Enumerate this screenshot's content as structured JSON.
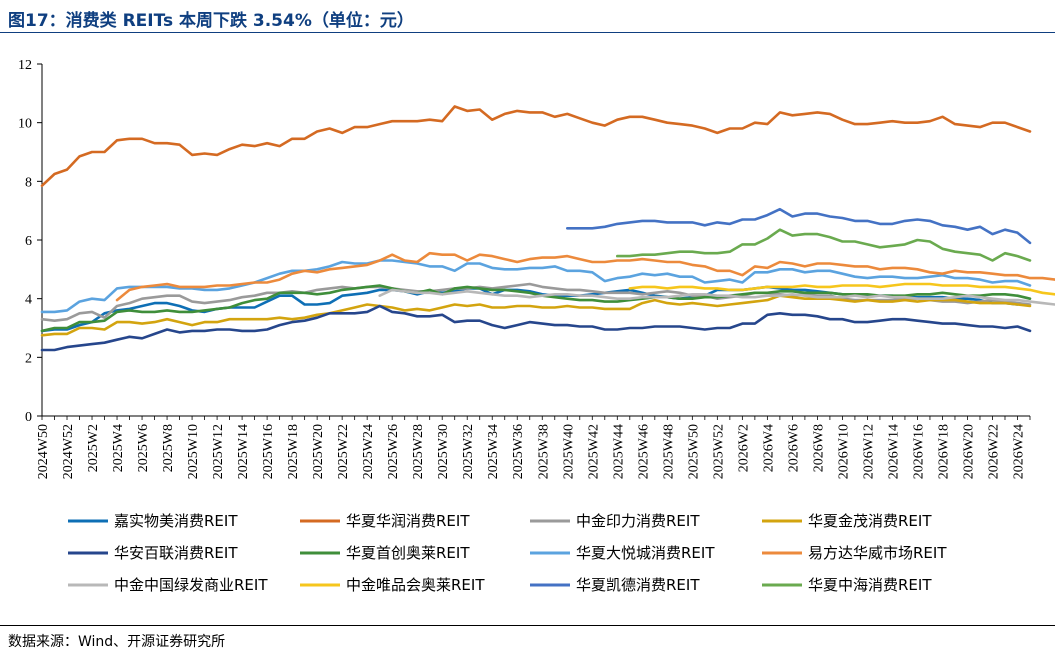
{
  "header": {
    "title": "图17：消费类 REITs 本周下跌 3.54%（单位：元）"
  },
  "footer": {
    "source": "数据来源：Wind、开源证券研究所"
  },
  "chart_data": {
    "type": "line",
    "title": "",
    "xlabel": "",
    "ylabel": "",
    "ylim": [
      0,
      12
    ],
    "yticks": [
      0,
      2,
      4,
      6,
      8,
      10,
      12
    ],
    "grid": false,
    "legend_position": "bottom",
    "xtick_labels": [
      "2024W50",
      "2024W52",
      "2025W2",
      "2025W4",
      "2025W6",
      "2025W8",
      "2025W10",
      "2025W12",
      "2025W14",
      "2025W16",
      "2025W18",
      "2025W20",
      "2025W22",
      "2025W24",
      "2025W26",
      "2025W28",
      "2025W30",
      "2025W32",
      "2025W34",
      "2025W36",
      "2025W38",
      "2025W40",
      "2025W42",
      "2025W44",
      "2025W46",
      "2025W48",
      "2025W50",
      "2025W52",
      "2026W2",
      "2026W4",
      "2026W6",
      "2026W8",
      "2026W10",
      "2026W12",
      "2026W14",
      "2026W16",
      "2026W18",
      "2026W20",
      "2026W22",
      "2026W24"
    ],
    "x_start": "2024W50",
    "x_end": "2026W25",
    "series": [
      {
        "name": "嘉实物美消费REIT",
        "color": "#0e6fb5",
        "start_week": "2024W50",
        "values": [
          2.9,
          2.95,
          2.95,
          3.1,
          3.2,
          3.5,
          3.6,
          3.65,
          3.75,
          3.85,
          3.85,
          3.75,
          3.6,
          3.55,
          3.65,
          3.7,
          3.7,
          3.7,
          3.9,
          4.1,
          4.1,
          3.8,
          3.8,
          3.85,
          4.1,
          4.15,
          4.2,
          4.3,
          4.3,
          4.25,
          4.15,
          4.25,
          4.2,
          4.25,
          4.35,
          4.35,
          4.15,
          4.3,
          4.3,
          4.25,
          4.15,
          4.1,
          4.1,
          4.1,
          4.15,
          4.2,
          4.25,
          4.3,
          4.2,
          4.1,
          4.05,
          4.0,
          4.05,
          4.1,
          4.3,
          4.3,
          4.3,
          4.35,
          4.4,
          4.35,
          4.3,
          4.3,
          4.25,
          4.2,
          4.15,
          4.15,
          4.1,
          4.1,
          4.1,
          4.05,
          4.05,
          4.05,
          4.05,
          4.0,
          4.0,
          3.95,
          3.85,
          3.85,
          3.8
        ]
      },
      {
        "name": "华夏华润消费REIT",
        "color": "#d46a22",
        "start_week": "2024W50",
        "values": [
          7.85,
          8.25,
          8.4,
          8.85,
          9.0,
          9.0,
          9.4,
          9.45,
          9.45,
          9.3,
          9.3,
          9.25,
          8.9,
          8.95,
          8.9,
          9.1,
          9.25,
          9.2,
          9.3,
          9.2,
          9.45,
          9.45,
          9.7,
          9.8,
          9.65,
          9.85,
          9.85,
          9.95,
          10.05,
          10.05,
          10.05,
          10.1,
          10.05,
          10.55,
          10.4,
          10.45,
          10.1,
          10.3,
          10.4,
          10.35,
          10.35,
          10.2,
          10.3,
          10.15,
          10.0,
          9.9,
          10.1,
          10.2,
          10.2,
          10.1,
          10.0,
          9.95,
          9.9,
          9.8,
          9.65,
          9.8,
          9.8,
          10.0,
          9.95,
          10.35,
          10.25,
          10.3,
          10.35,
          10.3,
          10.1,
          9.95,
          9.95,
          10.0,
          10.05,
          10.0,
          10.0,
          10.05,
          10.2,
          9.95,
          9.9,
          9.85,
          10.0,
          10.0,
          9.85,
          9.7
        ]
      },
      {
        "name": "中金印力消费REIT",
        "color": "#9a9a9a",
        "start_week": "2024W50",
        "values": [
          3.3,
          3.25,
          3.3,
          3.5,
          3.55,
          3.35,
          3.75,
          3.85,
          4.0,
          4.05,
          4.1,
          4.1,
          3.9,
          3.85,
          3.9,
          3.95,
          4.05,
          4.1,
          4.2,
          4.2,
          4.25,
          4.2,
          4.3,
          4.35,
          4.4,
          4.35,
          4.4,
          4.4,
          4.35,
          4.3,
          4.25,
          4.25,
          4.3,
          4.35,
          4.35,
          4.4,
          4.35,
          4.4,
          4.45,
          4.5,
          4.4,
          4.35,
          4.3,
          4.3,
          4.25,
          4.2,
          4.2,
          4.2,
          4.15,
          4.2,
          4.25,
          4.2,
          4.1,
          4.1,
          4.0,
          4.05,
          4.1,
          4.2,
          4.2,
          4.15,
          4.1,
          4.15,
          4.1,
          4.1,
          4.0,
          3.95,
          3.95,
          3.95,
          3.95,
          4.0,
          4.0,
          3.95,
          3.9,
          3.9,
          3.85,
          3.9,
          3.95,
          3.9,
          3.85,
          3.8
        ]
      },
      {
        "name": "华夏金茂消费REIT",
        "color": "#d3a40f",
        "start_week": "2024W50",
        "values": [
          2.75,
          2.8,
          2.8,
          3.0,
          3.0,
          2.95,
          3.2,
          3.2,
          3.15,
          3.2,
          3.3,
          3.2,
          3.1,
          3.2,
          3.2,
          3.3,
          3.3,
          3.3,
          3.3,
          3.35,
          3.3,
          3.35,
          3.45,
          3.5,
          3.6,
          3.7,
          3.8,
          3.75,
          3.7,
          3.6,
          3.65,
          3.6,
          3.7,
          3.8,
          3.75,
          3.8,
          3.7,
          3.7,
          3.75,
          3.75,
          3.7,
          3.7,
          3.75,
          3.7,
          3.7,
          3.65,
          3.65,
          3.65,
          3.85,
          3.95,
          3.85,
          3.8,
          3.85,
          3.8,
          3.75,
          3.8,
          3.85,
          3.9,
          3.95,
          4.1,
          4.05,
          4.0,
          4.0,
          4.0,
          3.95,
          3.9,
          3.95,
          3.9,
          3.9,
          3.95,
          3.9,
          3.95,
          3.95,
          3.95,
          3.9,
          3.85,
          3.85,
          3.85,
          3.8,
          3.75
        ]
      },
      {
        "name": "华安百联消费REIT",
        "color": "#26468c",
        "start_week": "2024W50",
        "values": [
          2.25,
          2.25,
          2.35,
          2.4,
          2.45,
          2.5,
          2.6,
          2.7,
          2.65,
          2.8,
          2.95,
          2.85,
          2.9,
          2.9,
          2.95,
          2.95,
          2.9,
          2.9,
          2.95,
          3.1,
          3.2,
          3.25,
          3.35,
          3.5,
          3.5,
          3.5,
          3.55,
          3.75,
          3.55,
          3.5,
          3.4,
          3.4,
          3.45,
          3.2,
          3.25,
          3.25,
          3.1,
          3.0,
          3.1,
          3.2,
          3.15,
          3.1,
          3.1,
          3.05,
          3.05,
          2.95,
          2.95,
          3.0,
          3.0,
          3.05,
          3.05,
          3.05,
          3.0,
          2.95,
          3.0,
          3.0,
          3.15,
          3.15,
          3.45,
          3.5,
          3.45,
          3.45,
          3.4,
          3.3,
          3.3,
          3.2,
          3.2,
          3.25,
          3.3,
          3.3,
          3.25,
          3.2,
          3.15,
          3.15,
          3.1,
          3.05,
          3.05,
          3.0,
          3.05,
          2.9
        ]
      },
      {
        "name": "华夏首创奥莱REIT",
        "color": "#3f8e3a",
        "start_week": "2024W50",
        "values": [
          2.9,
          3.0,
          3.0,
          3.2,
          3.2,
          3.25,
          3.55,
          3.6,
          3.55,
          3.55,
          3.6,
          3.55,
          3.55,
          3.6,
          3.65,
          3.7,
          3.85,
          3.95,
          4.0,
          4.2,
          4.2,
          4.2,
          4.15,
          4.2,
          4.3,
          4.35,
          4.4,
          4.45,
          4.35,
          4.25,
          4.2,
          4.3,
          4.15,
          4.35,
          4.4,
          4.35,
          4.3,
          4.3,
          4.25,
          4.2,
          4.1,
          4.05,
          4.0,
          3.95,
          3.95,
          3.9,
          3.9,
          3.95,
          4.0,
          4.05,
          4.05,
          4.0,
          4.0,
          4.05,
          4.05,
          4.1,
          4.15,
          4.2,
          4.2,
          4.25,
          4.25,
          4.2,
          4.2,
          4.2,
          4.15,
          4.15,
          4.15,
          4.1,
          4.1,
          4.1,
          4.15,
          4.15,
          4.2,
          4.15,
          4.1,
          4.1,
          4.15,
          4.15,
          4.1,
          4.0
        ]
      },
      {
        "name": "华夏大悦城消费REIT",
        "color": "#5ba3df",
        "start_week": "2024W50",
        "values": [
          3.55,
          3.55,
          3.6,
          3.9,
          4.0,
          3.95,
          4.35,
          4.4,
          4.4,
          4.4,
          4.4,
          4.35,
          4.35,
          4.3,
          4.3,
          4.35,
          4.45,
          4.55,
          4.7,
          4.85,
          4.95,
          4.95,
          5.0,
          5.1,
          5.25,
          5.2,
          5.2,
          5.3,
          5.3,
          5.25,
          5.2,
          5.1,
          5.1,
          4.95,
          5.2,
          5.2,
          5.05,
          5.0,
          5.0,
          5.05,
          5.05,
          5.1,
          4.95,
          4.95,
          4.9,
          4.6,
          4.7,
          4.75,
          4.85,
          4.8,
          4.85,
          4.75,
          4.75,
          4.55,
          4.6,
          4.65,
          4.55,
          4.9,
          4.9,
          5.0,
          5.0,
          4.9,
          4.95,
          4.95,
          4.85,
          4.75,
          4.7,
          4.75,
          4.75,
          4.7,
          4.7,
          4.75,
          4.8,
          4.7,
          4.7,
          4.65,
          4.55,
          4.6,
          4.6,
          4.45
        ]
      },
      {
        "name": "易方达华威市场REIT",
        "color": "#ec8a3c",
        "start_week": "2025W4",
        "values": [
          3.95,
          4.3,
          4.4,
          4.45,
          4.5,
          4.4,
          4.4,
          4.4,
          4.45,
          4.45,
          4.5,
          4.55,
          4.55,
          4.65,
          4.85,
          4.95,
          4.9,
          5.0,
          5.05,
          5.1,
          5.15,
          5.3,
          5.5,
          5.3,
          5.25,
          5.55,
          5.5,
          5.5,
          5.3,
          5.5,
          5.45,
          5.35,
          5.25,
          5.35,
          5.4,
          5.4,
          5.45,
          5.35,
          5.25,
          5.25,
          5.3,
          5.3,
          5.35,
          5.3,
          5.25,
          5.25,
          5.15,
          5.1,
          4.95,
          4.95,
          4.8,
          5.1,
          5.05,
          5.25,
          5.2,
          5.1,
          5.2,
          5.2,
          5.15,
          5.1,
          5.1,
          5.0,
          5.05,
          5.05,
          5.0,
          4.9,
          4.85,
          4.95,
          4.9,
          4.9,
          4.85,
          4.8,
          4.8,
          4.7,
          4.7,
          4.65,
          4.5
        ]
      },
      {
        "name": "中金中国绿发商业REIT",
        "color": "#b8b8b8",
        "start_week": "2025W25",
        "values": [
          4.1,
          4.3,
          4.25,
          4.2,
          4.2,
          4.15,
          4.2,
          4.25,
          4.2,
          4.15,
          4.1,
          4.1,
          4.05,
          4.1,
          4.15,
          4.15,
          4.1,
          4.1,
          4.05,
          4.0,
          4.0,
          4.05,
          4.05,
          4.05,
          4.1,
          4.15,
          4.15,
          4.1,
          4.1,
          4.05,
          4.05,
          4.1,
          4.1,
          4.15,
          4.1,
          4.05,
          4.05,
          4.05,
          4.1,
          4.05,
          4.1,
          4.05,
          4.05,
          4.0,
          4.0,
          4.0,
          4.05,
          4.1,
          4.05,
          4.0,
          3.95,
          3.95,
          3.9,
          3.85,
          3.8,
          3.75
        ]
      },
      {
        "name": "中金唯品会奥莱REIT",
        "color": "#f6c61c",
        "start_week": "2025W45",
        "values": [
          4.35,
          4.4,
          4.4,
          4.35,
          4.4,
          4.4,
          4.35,
          4.35,
          4.3,
          4.3,
          4.35,
          4.4,
          4.4,
          4.4,
          4.45,
          4.4,
          4.4,
          4.45,
          4.45,
          4.45,
          4.4,
          4.45,
          4.5,
          4.5,
          4.5,
          4.45,
          4.45,
          4.45,
          4.4,
          4.4,
          4.4,
          4.35,
          4.3,
          4.2,
          4.15,
          4.2
        ]
      },
      {
        "name": "华夏凯德消费REIT",
        "color": "#4472c4",
        "start_week": "2025W40",
        "values": [
          6.4,
          6.4,
          6.4,
          6.45,
          6.55,
          6.6,
          6.65,
          6.65,
          6.6,
          6.6,
          6.6,
          6.5,
          6.6,
          6.55,
          6.7,
          6.7,
          6.85,
          7.05,
          6.8,
          6.9,
          6.9,
          6.8,
          6.75,
          6.65,
          6.65,
          6.55,
          6.55,
          6.65,
          6.7,
          6.65,
          6.5,
          6.45,
          6.35,
          6.45,
          6.2,
          6.35,
          6.25,
          5.9
        ]
      },
      {
        "name": "华夏中海消费REIT",
        "color": "#6aaa4f",
        "start_week": "2025W44",
        "values": [
          5.45,
          5.45,
          5.5,
          5.5,
          5.55,
          5.6,
          5.6,
          5.55,
          5.55,
          5.6,
          5.85,
          5.85,
          6.05,
          6.35,
          6.15,
          6.2,
          6.2,
          6.1,
          5.95,
          5.95,
          5.85,
          5.75,
          5.8,
          5.85,
          6.0,
          5.95,
          5.7,
          5.6,
          5.55,
          5.5,
          5.3,
          5.55,
          5.45,
          5.3
        ]
      }
    ]
  }
}
